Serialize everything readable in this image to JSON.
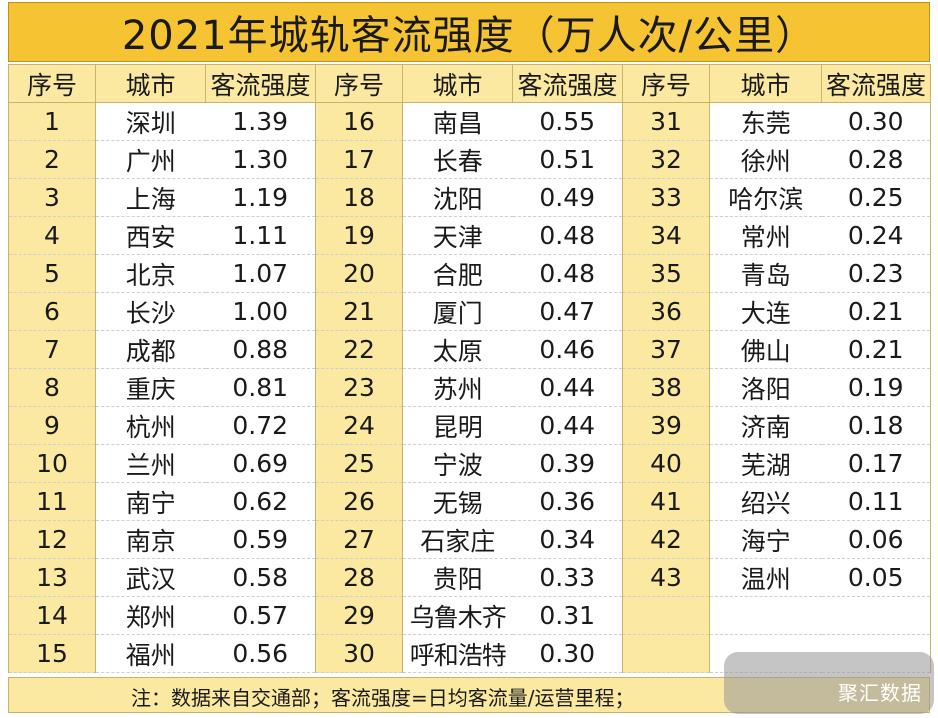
{
  "title": "2021年城轨客流强度（万人次/公里）",
  "headers": {
    "seq": "序号",
    "city": "城市",
    "value": "客流强度"
  },
  "rows": [
    {
      "seq": "1",
      "city": "深圳",
      "value": "1.39"
    },
    {
      "seq": "2",
      "city": "广州",
      "value": "1.30"
    },
    {
      "seq": "3",
      "city": "上海",
      "value": "1.19"
    },
    {
      "seq": "4",
      "city": "西安",
      "value": "1.11"
    },
    {
      "seq": "5",
      "city": "北京",
      "value": "1.07"
    },
    {
      "seq": "6",
      "city": "长沙",
      "value": "1.00"
    },
    {
      "seq": "7",
      "city": "成都",
      "value": "0.88"
    },
    {
      "seq": "8",
      "city": "重庆",
      "value": "0.81"
    },
    {
      "seq": "9",
      "city": "杭州",
      "value": "0.72"
    },
    {
      "seq": "10",
      "city": "兰州",
      "value": "0.69"
    },
    {
      "seq": "11",
      "city": "南宁",
      "value": "0.62"
    },
    {
      "seq": "12",
      "city": "南京",
      "value": "0.59"
    },
    {
      "seq": "13",
      "city": "武汉",
      "value": "0.58"
    },
    {
      "seq": "14",
      "city": "郑州",
      "value": "0.57"
    },
    {
      "seq": "15",
      "city": "福州",
      "value": "0.56"
    },
    {
      "seq": "16",
      "city": "南昌",
      "value": "0.55"
    },
    {
      "seq": "17",
      "city": "长春",
      "value": "0.51"
    },
    {
      "seq": "18",
      "city": "沈阳",
      "value": "0.49"
    },
    {
      "seq": "19",
      "city": "天津",
      "value": "0.48"
    },
    {
      "seq": "20",
      "city": "合肥",
      "value": "0.48"
    },
    {
      "seq": "21",
      "city": "厦门",
      "value": "0.47"
    },
    {
      "seq": "22",
      "city": "太原",
      "value": "0.46"
    },
    {
      "seq": "23",
      "city": "苏州",
      "value": "0.44"
    },
    {
      "seq": "24",
      "city": "昆明",
      "value": "0.44"
    },
    {
      "seq": "25",
      "city": "宁波",
      "value": "0.39"
    },
    {
      "seq": "26",
      "city": "无锡",
      "value": "0.36"
    },
    {
      "seq": "27",
      "city": "石家庄",
      "value": "0.34"
    },
    {
      "seq": "28",
      "city": "贵阳",
      "value": "0.33"
    },
    {
      "seq": "29",
      "city": "乌鲁木齐",
      "value": "0.31"
    },
    {
      "seq": "30",
      "city": "呼和浩特",
      "value": "0.30"
    },
    {
      "seq": "31",
      "city": "东莞",
      "value": "0.30"
    },
    {
      "seq": "32",
      "city": "徐州",
      "value": "0.28"
    },
    {
      "seq": "33",
      "city": "哈尔滨",
      "value": "0.25"
    },
    {
      "seq": "34",
      "city": "常州",
      "value": "0.24"
    },
    {
      "seq": "35",
      "city": "青岛",
      "value": "0.23"
    },
    {
      "seq": "36",
      "city": "大连",
      "value": "0.21"
    },
    {
      "seq": "37",
      "city": "佛山",
      "value": "0.21"
    },
    {
      "seq": "38",
      "city": "洛阳",
      "value": "0.19"
    },
    {
      "seq": "39",
      "city": "济南",
      "value": "0.18"
    },
    {
      "seq": "40",
      "city": "芜湖",
      "value": "0.17"
    },
    {
      "seq": "41",
      "city": "绍兴",
      "value": "0.11"
    },
    {
      "seq": "42",
      "city": "海宁",
      "value": "0.06"
    },
    {
      "seq": "43",
      "city": "温州",
      "value": "0.05"
    }
  ],
  "footer_note": "注：数据来自交通部；客流强度=日均客流量/运营里程；",
  "watermark": "聚汇数据",
  "colors": {
    "title_bg": "#F6C433",
    "header_bg": "#FBE9A2",
    "cell_bg": "#FFFFFF",
    "text": "#1A1A1A"
  }
}
